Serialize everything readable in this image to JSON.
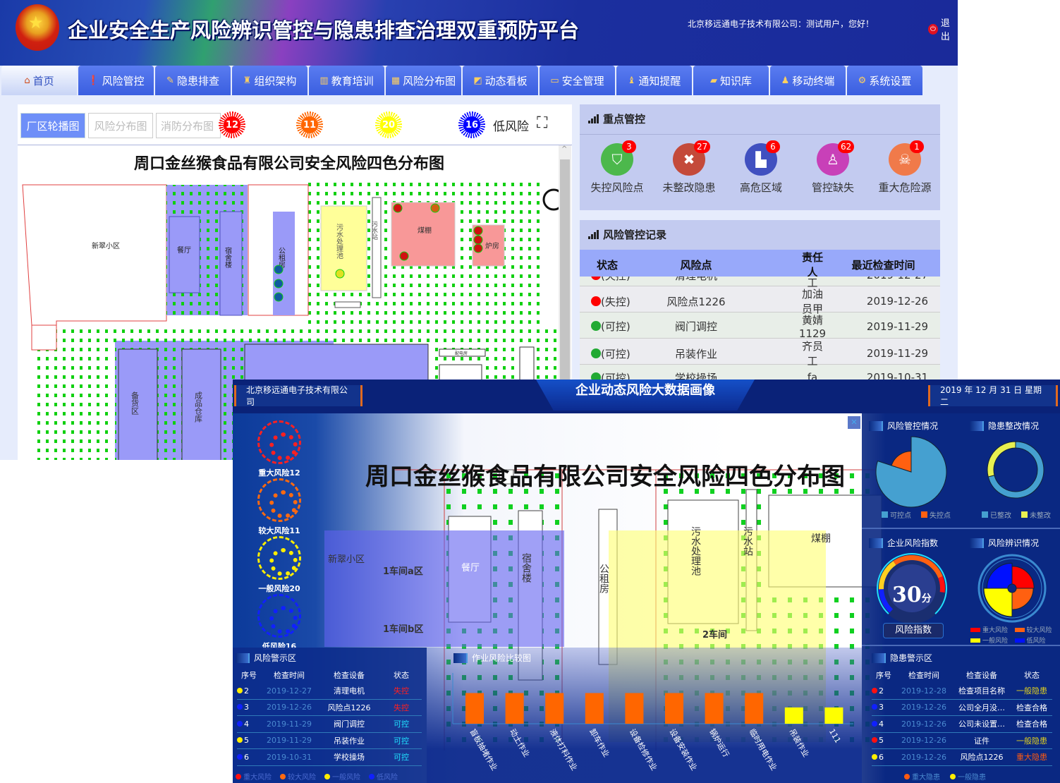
{
  "header": {
    "title": "企业安全生产风险辨识管控与隐患排查治理双重预防平台",
    "greeting": "北京移远通电子技术有限公司：测试用户，您好！",
    "logout": "退出"
  },
  "nav": [
    {
      "label": "首页",
      "icon": "home-icon",
      "active": true
    },
    {
      "label": "风险管控",
      "icon": "alert-icon"
    },
    {
      "label": "隐患排查",
      "icon": "edit-icon"
    },
    {
      "label": "组织架构",
      "icon": "org-icon"
    },
    {
      "label": "教育培训",
      "icon": "book-icon"
    },
    {
      "label": "风险分布图",
      "icon": "grid-icon"
    },
    {
      "label": "动态看板",
      "icon": "board-icon"
    },
    {
      "label": "安全管理",
      "icon": "monitor-icon"
    },
    {
      "label": "通知提醒",
      "icon": "bell-icon"
    },
    {
      "label": "知识库",
      "icon": "folder-icon"
    },
    {
      "label": "移动终端",
      "icon": "mobile-icon"
    },
    {
      "label": "系统设置",
      "icon": "gear-icon"
    }
  ],
  "left_panel": {
    "tabs": [
      "厂区轮播图",
      "风险分布图",
      "消防分布图"
    ],
    "risk_badges": [
      {
        "count": "12",
        "color": "#ff0000"
      },
      {
        "count": "11",
        "color": "#ff6600"
      },
      {
        "count": "20",
        "color": "#ffff00"
      },
      {
        "count": "16",
        "color": "#0000ff"
      }
    ],
    "low_risk_label": "低风险",
    "map_title": "周口金丝猴食品有限公司安全风险四色分布图",
    "map_labels": {
      "xincui": "新翠小区",
      "canting": "餐厅",
      "sushe": "宿舍楼",
      "gongzu": "公租房",
      "wushuichi": "污水处理池",
      "wushuizhan": "污水站",
      "meipeng": "煤棚",
      "lufang": "炉房",
      "beihuo": "备货区",
      "chengpin": "成品仓库",
      "peidian": "配电房"
    }
  },
  "key_control": {
    "title": "重点管控",
    "items": [
      {
        "label": "失控风险点",
        "count": "3",
        "color": "#4cb84c",
        "icon": "shield-icon"
      },
      {
        "label": "未整改隐患",
        "count": "27",
        "color": "#c44a3a",
        "icon": "tools-icon"
      },
      {
        "label": "高危区域",
        "count": "6",
        "color": "#4050c0",
        "icon": "factory-icon"
      },
      {
        "label": "管控缺失",
        "count": "62",
        "color": "#c840b8",
        "icon": "person-icon"
      },
      {
        "label": "重大危险源",
        "count": "1",
        "color": "#f07a4a",
        "icon": "skull-icon"
      }
    ]
  },
  "records": {
    "title": "风险管控记录",
    "columns": [
      "状态",
      "风险点",
      "责任人",
      "最近检查时间"
    ],
    "rows": [
      {
        "status": "(失控)",
        "color": "#ff0000",
        "point": "清理电机",
        "person": "黄员工",
        "date": "2019-12-27"
      },
      {
        "status": "(失控)",
        "color": "#ff0000",
        "point": "风险点1226",
        "person": "加油员甲",
        "date": "2019-12-26"
      },
      {
        "status": "(可控)",
        "color": "#22aa33",
        "point": "阀门调控",
        "person": "黄婧1129",
        "date": "2019-11-29"
      },
      {
        "status": "(可控)",
        "color": "#22aa33",
        "point": "吊装作业",
        "person": "齐员工",
        "date": "2019-11-29"
      },
      {
        "status": "(可控)",
        "color": "#22aa33",
        "point": "学校操场",
        "person": "fa",
        "date": "2019-10-31"
      }
    ]
  },
  "dashboard": {
    "company": "北京移远通电子技术有限公司",
    "title": "企业动态风险大数据画像",
    "date": "2019 年 12 月 31 日 星期二",
    "map_title": "周口金丝猴食品有限公司安全风险四色分布图",
    "risk_levels": [
      {
        "label": "重大风险12",
        "color": "#ff2020"
      },
      {
        "label": "较大风险11",
        "color": "#ff6a10"
      },
      {
        "label": "一般风险20",
        "color": "#ffee00"
      },
      {
        "label": "低风险16",
        "color": "#1020ff"
      }
    ],
    "map_labels": {
      "xincui": "新翠小区",
      "area1": "1车间a区",
      "area1b": "1车间b区",
      "canting": "餐厅",
      "sushe": "宿舍楼",
      "gongzu": "公租房",
      "wushuichi": "污水处理池",
      "wushuizhan": "污水站",
      "meipeng": "煤棚",
      "area2": "2车间"
    },
    "risk_warning": {
      "title": "风险警示区",
      "columns": [
        "序号",
        "检查时间",
        "检查设备",
        "状态"
      ],
      "rows": [
        {
          "no": "2",
          "dot": "#ffee00",
          "date": "2019-12-27",
          "device": "清理电机",
          "status": "失控",
          "status_color": "#ff2020"
        },
        {
          "no": "3",
          "dot": "#1020ff",
          "date": "2019-12-26",
          "device": "风险点1226",
          "status": "失控",
          "status_color": "#ff2020"
        },
        {
          "no": "4",
          "dot": "#1020ff",
          "date": "2019-11-29",
          "device": "阀门调控",
          "status": "可控",
          "status_color": "#20e0ff"
        },
        {
          "no": "5",
          "dot": "#ffee00",
          "date": "2019-11-29",
          "device": "吊装作业",
          "status": "可控",
          "status_color": "#20e0ff"
        },
        {
          "no": "6",
          "dot": "#1020ff",
          "date": "2019-10-31",
          "device": "学校操场",
          "status": "可控",
          "status_color": "#20e0ff"
        }
      ],
      "legend": [
        {
          "label": "重大风险",
          "color": "#ff1010"
        },
        {
          "label": "较大风险",
          "color": "#ff6a10"
        },
        {
          "label": "一般风险",
          "color": "#ffee00"
        },
        {
          "label": "低风险",
          "color": "#1020ff"
        }
      ]
    },
    "hazard_warning": {
      "title": "隐患警示区",
      "columns": [
        "序号",
        "检查时间",
        "检查设备",
        "状态"
      ],
      "rows": [
        {
          "no": "2",
          "dot": "#ff1010",
          "date": "2019-12-28",
          "device": "检查项目名称",
          "status": "一般隐患",
          "status_color": "#e0d020"
        },
        {
          "no": "3",
          "dot": "#1020ff",
          "date": "2019-12-26",
          "device": "公司全月没…",
          "status": "检查合格",
          "status_color": "#ffffff"
        },
        {
          "no": "4",
          "dot": "#1020ff",
          "date": "2019-12-26",
          "device": "公司未设置…",
          "status": "检查合格",
          "status_color": "#ffffff"
        },
        {
          "no": "5",
          "dot": "#ff1010",
          "date": "2019-12-26",
          "device": "证件",
          "status": "一般隐患",
          "status_color": "#e0d020"
        },
        {
          "no": "6",
          "dot": "#ffee00",
          "date": "2019-12-26",
          "device": "风险点1226",
          "status": "重大隐患",
          "status_color": "#ff5a10"
        }
      ],
      "legend": [
        {
          "label": "重大隐患",
          "color": "#ff5a10"
        },
        {
          "label": "一般隐患",
          "color": "#ffee00"
        }
      ]
    },
    "risk_index": {
      "title": "企业风险指数",
      "value": "30",
      "unit": "分",
      "label": "风险指数"
    }
  },
  "chart_data": [
    {
      "type": "bar",
      "title": "作业风险比较图",
      "categories": [
        "盲板抽堵作业",
        "动土作业",
        "液体打料作业",
        "卸车作业",
        "设备检修作业",
        "设备安装作业",
        "锅炉运行",
        "临时用电作业",
        "吊装作业",
        "111"
      ],
      "values": [
        3.2,
        3.2,
        3.2,
        3.2,
        3.2,
        3.2,
        3.2,
        3.2,
        1.7,
        1.7
      ],
      "colors": [
        "#ff6600",
        "#ff6600",
        "#ff6600",
        "#ff6600",
        "#ff6600",
        "#ff6600",
        "#ff6600",
        "#ff6600",
        "#ffff00",
        "#ffff00"
      ],
      "ylim": [
        0,
        5
      ],
      "grid": false
    },
    {
      "type": "pie",
      "title": "风险管控情况",
      "labels": [
        "可控点",
        "失控点"
      ],
      "values": [
        80,
        20
      ],
      "colors": [
        "#45a0d0",
        "#ff6010"
      ],
      "rose": true,
      "legend": "bottom"
    },
    {
      "type": "pie",
      "title": "隐患整改情况",
      "labels": [
        "已整改",
        "未整改"
      ],
      "values": [
        71,
        29
      ],
      "colors": [
        "#45a0d0",
        "#e8f050"
      ],
      "donut": true,
      "legend": "bottom"
    },
    {
      "type": "pie",
      "title": "风险辨识情况",
      "labels": [
        "重大风险",
        "较大风险",
        "一般风险",
        "低风险"
      ],
      "values": [
        12,
        11,
        20,
        16
      ],
      "colors": [
        "#ff0000",
        "#ff6010",
        "#ffff00",
        "#0010ff"
      ],
      "rose": true,
      "legend": "bottom"
    }
  ]
}
